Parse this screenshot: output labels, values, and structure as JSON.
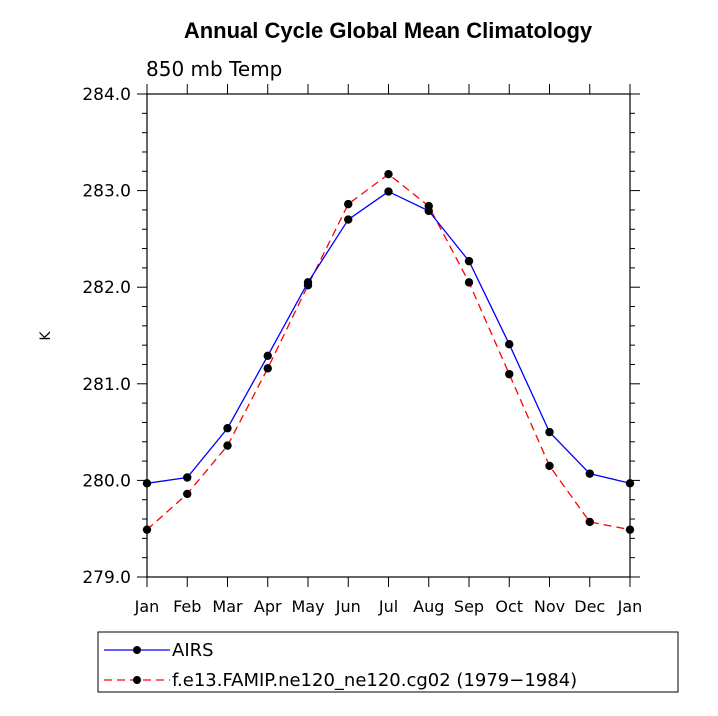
{
  "chart_data": {
    "type": "line",
    "title": "Annual Cycle Global Mean Climatology",
    "subtitle": "850 mb Temp",
    "ylabel": "K",
    "xlabel": "",
    "ylim": [
      279.0,
      284.0
    ],
    "yticks": [
      "279.0",
      "280.0",
      "281.0",
      "282.0",
      "283.0",
      "284.0"
    ],
    "categories": [
      "Jan",
      "Feb",
      "Mar",
      "Apr",
      "May",
      "Jun",
      "Jul",
      "Aug",
      "Sep",
      "Oct",
      "Nov",
      "Dec",
      "Jan"
    ],
    "series": [
      {
        "name": "AIRS",
        "color": "#0000ff",
        "style": "solid",
        "values": [
          279.97,
          280.03,
          280.54,
          281.29,
          282.05,
          282.7,
          282.99,
          282.79,
          282.27,
          281.41,
          280.5,
          280.07,
          279.97
        ]
      },
      {
        "name": "f.e13.FAMIP.ne120_ne120.cg02 (1979−1984)",
        "color": "#ff0000",
        "style": "dashed",
        "values": [
          279.49,
          279.86,
          280.36,
          281.16,
          282.02,
          282.86,
          283.17,
          282.84,
          282.05,
          281.1,
          280.15,
          279.57,
          279.49
        ]
      }
    ]
  }
}
